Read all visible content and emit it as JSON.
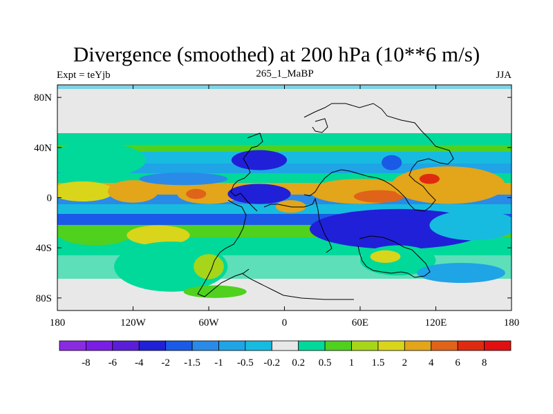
{
  "chart_data": {
    "type": "heatmap",
    "title": "Divergence (smoothed) at 200 hPa (10**6 m/s)",
    "left_label": "Expt = teYjb",
    "center_label": "265_1_MaBP",
    "right_label": "JJA",
    "x_ticks": [
      {
        "value": -180,
        "label": "180"
      },
      {
        "value": -120,
        "label": "120W"
      },
      {
        "value": -60,
        "label": "60W"
      },
      {
        "value": 0,
        "label": "0"
      },
      {
        "value": 60,
        "label": "60E"
      },
      {
        "value": 120,
        "label": "120E"
      },
      {
        "value": 180,
        "label": "180"
      }
    ],
    "y_ticks": [
      {
        "value": 80,
        "label": "80N"
      },
      {
        "value": 40,
        "label": "40N"
      },
      {
        "value": 0,
        "label": "0"
      },
      {
        "value": -40,
        "label": "40S"
      },
      {
        "value": -80,
        "label": "80S"
      }
    ],
    "xlim": [
      -180,
      180
    ],
    "ylim": [
      -90,
      90
    ],
    "colorbar": {
      "colors": [
        "#8a2be2",
        "#7a1ee6",
        "#5a1ed8",
        "#2020d8",
        "#1a5ae6",
        "#2a8ae8",
        "#1fa4e6",
        "#18bbe0",
        "#e8e8e8",
        "#00d99a",
        "#4fd11e",
        "#a6d51a",
        "#d9d51a",
        "#e3a51a",
        "#e0631a",
        "#e02a10",
        "#e01010"
      ],
      "labels": [
        "-8",
        "-6",
        "-4",
        "-2",
        "-1.5",
        "-1",
        "-0.5",
        "-0.2",
        "0.2",
        "0.5",
        "1",
        "1.5",
        "2",
        "4",
        "6",
        "8"
      ]
    },
    "field_blobs": [
      {
        "lon": -150,
        "lat": 30,
        "rx": 40,
        "ry": 14,
        "level": 9
      },
      {
        "lon": -160,
        "lat": 5,
        "rx": 25,
        "ry": 8,
        "level": 12
      },
      {
        "lon": -120,
        "lat": 5,
        "rx": 20,
        "ry": 9,
        "level": 13
      },
      {
        "lon": -60,
        "lat": 3,
        "rx": 25,
        "ry": 8,
        "level": 13
      },
      {
        "lon": -70,
        "lat": 3,
        "rx": 8,
        "ry": 4,
        "level": 14
      },
      {
        "lon": -150,
        "lat": -30,
        "rx": 28,
        "ry": 8,
        "level": 10
      },
      {
        "lon": -100,
        "lat": -30,
        "rx": 25,
        "ry": 8,
        "level": 12
      },
      {
        "lon": -90,
        "lat": -55,
        "rx": 45,
        "ry": 20,
        "level": 9
      },
      {
        "lon": -60,
        "lat": -55,
        "rx": 12,
        "ry": 10,
        "level": 11
      },
      {
        "lon": -80,
        "lat": 15,
        "rx": 35,
        "ry": 5,
        "level": 5
      },
      {
        "lon": -20,
        "lat": 30,
        "rx": 22,
        "ry": 8,
        "level": 3
      },
      {
        "lon": -20,
        "lat": 3,
        "rx": 25,
        "ry": 8,
        "level": 3
      },
      {
        "lon": 5,
        "lat": -7,
        "rx": 12,
        "ry": 5,
        "level": 13
      },
      {
        "lon": 60,
        "lat": 5,
        "rx": 40,
        "ry": 10,
        "level": 13
      },
      {
        "lon": 75,
        "lat": 1,
        "rx": 20,
        "ry": 5,
        "level": 14
      },
      {
        "lon": 130,
        "lat": 10,
        "rx": 45,
        "ry": 15,
        "level": 13
      },
      {
        "lon": 115,
        "lat": 15,
        "rx": 8,
        "ry": 4,
        "level": 15
      },
      {
        "lon": 90,
        "lat": -25,
        "rx": 70,
        "ry": 16,
        "level": 3
      },
      {
        "lon": 150,
        "lat": -22,
        "rx": 35,
        "ry": 12,
        "level": 7
      },
      {
        "lon": 90,
        "lat": -50,
        "rx": 30,
        "ry": 12,
        "level": 9
      },
      {
        "lon": 80,
        "lat": -47,
        "rx": 12,
        "ry": 5,
        "level": 12
      },
      {
        "lon": 85,
        "lat": 28,
        "rx": 8,
        "ry": 6,
        "level": 4
      },
      {
        "lon": 140,
        "lat": -60,
        "rx": 35,
        "ry": 8,
        "level": 6
      },
      {
        "lon": -55,
        "lat": -75,
        "rx": 25,
        "ry": 5,
        "level": 10
      }
    ]
  }
}
